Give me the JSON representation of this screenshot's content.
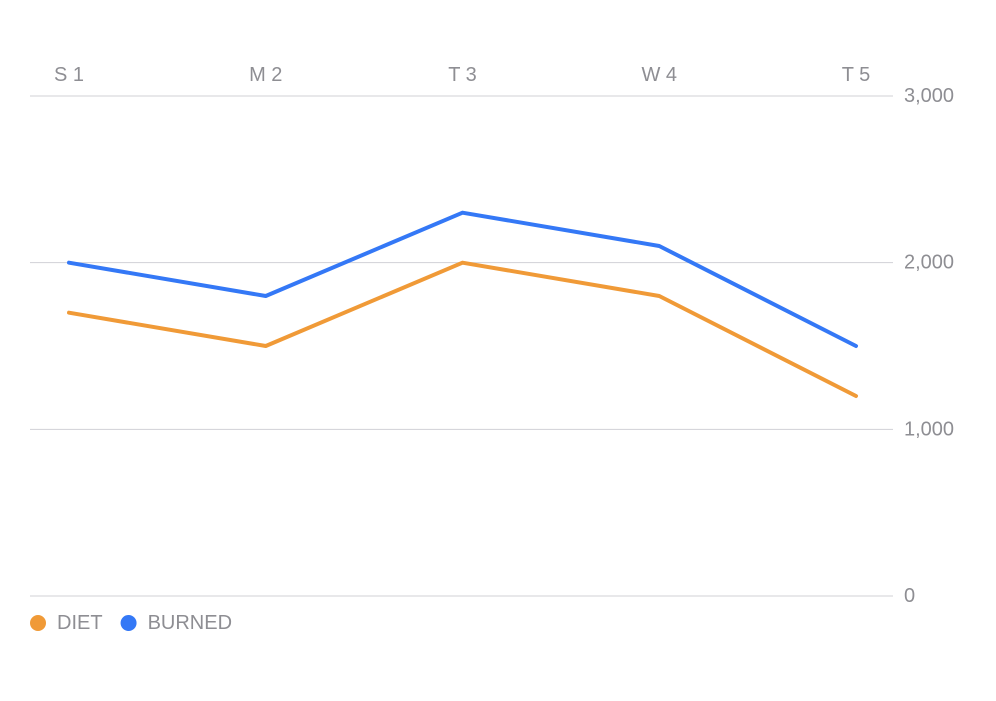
{
  "chart_data": {
    "type": "line",
    "categories": [
      "S 1",
      "M 2",
      "T 3",
      "W 4",
      "T 5"
    ],
    "series": [
      {
        "name": "DIET",
        "color": "#f09a37",
        "values": [
          1700,
          1500,
          2000,
          1800,
          1200
        ]
      },
      {
        "name": "BURNED",
        "color": "#3478f6",
        "values": [
          2000,
          1800,
          2300,
          2100,
          1500
        ]
      }
    ],
    "y_ticks": [
      0,
      1000,
      2000,
      3000
    ],
    "y_tick_labels": [
      "0",
      "1,000",
      "2,000",
      "3,000"
    ],
    "ylim": [
      0,
      3000
    ],
    "y_axis_position": "right",
    "x_axis_position": "top",
    "grid": true,
    "legend_position": "bottom-left"
  }
}
